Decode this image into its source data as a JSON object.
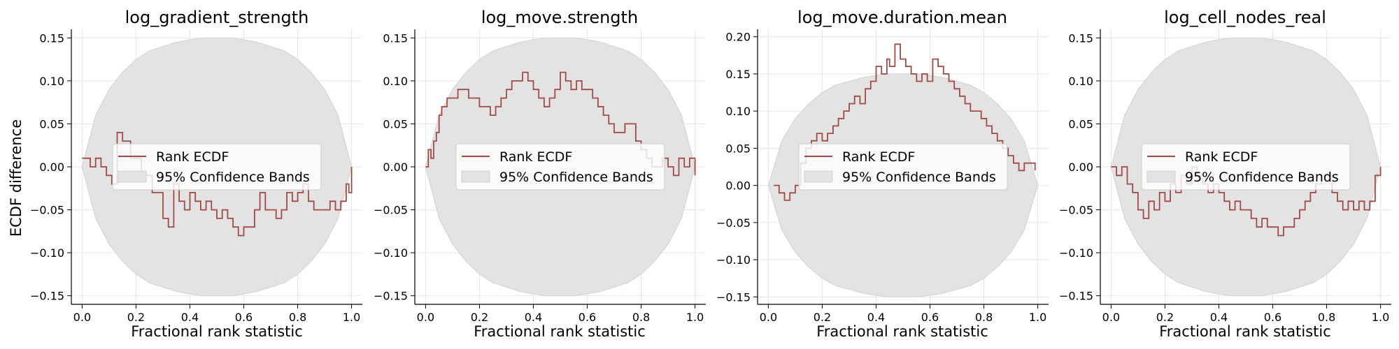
{
  "figure": {
    "ylabel": "ECDF difference"
  },
  "legend": {
    "line_label": "Rank ECDF",
    "band_label": "95% Confidence Bands"
  },
  "colors": {
    "ecdf_line": "#a24a4a",
    "band_fill": "#e3e3e3",
    "band_edge": "#d2d2d2",
    "grid": "#e6e6e6",
    "axis": "#000000"
  },
  "chart_data": [
    {
      "type": "line",
      "title": "log_gradient_strength",
      "xlabel": "Fractional rank statistic",
      "ylabel": "ECDF difference",
      "xlim": [
        -0.04,
        1.04
      ],
      "ylim": [
        -0.16,
        0.16
      ],
      "xticks": [
        0.0,
        0.2,
        0.4,
        0.6,
        0.8,
        1.0
      ],
      "yticks": [
        -0.15,
        -0.1,
        -0.05,
        0.0,
        0.05,
        0.1,
        0.15
      ],
      "legend_position": "center",
      "grid": true,
      "series": [
        {
          "name": "Rank ECDF",
          "x": [
            0.0,
            0.03,
            0.05,
            0.07,
            0.09,
            0.11,
            0.13,
            0.15,
            0.18,
            0.22,
            0.26,
            0.3,
            0.32,
            0.34,
            0.36,
            0.38,
            0.4,
            0.42,
            0.44,
            0.46,
            0.48,
            0.5,
            0.52,
            0.54,
            0.56,
            0.58,
            0.6,
            0.62,
            0.64,
            0.66,
            0.68,
            0.7,
            0.72,
            0.74,
            0.76,
            0.78,
            0.8,
            0.82,
            0.84,
            0.86,
            0.88,
            0.9,
            0.92,
            0.94,
            0.96,
            0.98,
            0.99,
            1.0
          ],
          "y": [
            0.01,
            0.0,
            0.01,
            0.0,
            -0.01,
            -0.02,
            0.04,
            0.03,
            0.01,
            -0.01,
            -0.03,
            -0.06,
            -0.07,
            -0.02,
            -0.04,
            -0.05,
            -0.03,
            -0.04,
            -0.05,
            -0.04,
            -0.05,
            -0.06,
            -0.05,
            -0.06,
            -0.07,
            -0.08,
            -0.07,
            -0.07,
            -0.05,
            -0.03,
            -0.05,
            -0.05,
            -0.06,
            -0.05,
            -0.03,
            -0.04,
            -0.03,
            -0.02,
            -0.04,
            -0.05,
            -0.05,
            -0.05,
            -0.04,
            -0.05,
            -0.04,
            -0.02,
            -0.03,
            0.0
          ]
        }
      ],
      "band": {
        "name": "95% Confidence Bands",
        "x": [
          0.0,
          0.05,
          0.1,
          0.15,
          0.2,
          0.25,
          0.3,
          0.35,
          0.4,
          0.45,
          0.5,
          0.55,
          0.6,
          0.65,
          0.7,
          0.75,
          0.8,
          0.85,
          0.9,
          0.95,
          1.0
        ],
        "upper": [
          0.0,
          0.06,
          0.09,
          0.11,
          0.125,
          0.135,
          0.14,
          0.145,
          0.148,
          0.15,
          0.15,
          0.15,
          0.148,
          0.145,
          0.14,
          0.135,
          0.125,
          0.11,
          0.09,
          0.06,
          0.0
        ],
        "lower": [
          0.0,
          -0.06,
          -0.09,
          -0.11,
          -0.125,
          -0.135,
          -0.14,
          -0.145,
          -0.148,
          -0.15,
          -0.15,
          -0.15,
          -0.148,
          -0.145,
          -0.14,
          -0.135,
          -0.125,
          -0.11,
          -0.09,
          -0.06,
          0.0
        ]
      }
    },
    {
      "type": "line",
      "title": "log_move.strength",
      "xlabel": "Fractional rank statistic",
      "ylabel": "",
      "xlim": [
        -0.04,
        1.04
      ],
      "ylim": [
        -0.16,
        0.16
      ],
      "xticks": [
        0.0,
        0.2,
        0.4,
        0.6,
        0.8,
        1.0
      ],
      "yticks": [
        -0.15,
        -0.1,
        -0.05,
        0.0,
        0.05,
        0.1,
        0.15
      ],
      "legend_position": "center",
      "grid": true,
      "series": [
        {
          "name": "Rank ECDF",
          "x": [
            0.0,
            0.01,
            0.02,
            0.03,
            0.04,
            0.05,
            0.06,
            0.07,
            0.08,
            0.1,
            0.12,
            0.14,
            0.16,
            0.18,
            0.2,
            0.22,
            0.24,
            0.26,
            0.28,
            0.3,
            0.32,
            0.34,
            0.36,
            0.38,
            0.4,
            0.42,
            0.44,
            0.46,
            0.48,
            0.5,
            0.52,
            0.54,
            0.56,
            0.58,
            0.6,
            0.62,
            0.64,
            0.66,
            0.68,
            0.7,
            0.72,
            0.74,
            0.76,
            0.78,
            0.8,
            0.82,
            0.84,
            0.86,
            0.88,
            0.9,
            0.92,
            0.94,
            0.96,
            0.98,
            1.0
          ],
          "y": [
            0.0,
            0.02,
            0.01,
            0.03,
            0.04,
            0.06,
            0.07,
            0.07,
            0.08,
            0.08,
            0.09,
            0.09,
            0.08,
            0.08,
            0.07,
            0.07,
            0.06,
            0.07,
            0.08,
            0.09,
            0.1,
            0.1,
            0.11,
            0.1,
            0.09,
            0.08,
            0.07,
            0.08,
            0.09,
            0.11,
            0.1,
            0.09,
            0.1,
            0.09,
            0.09,
            0.08,
            0.07,
            0.06,
            0.05,
            0.04,
            0.04,
            0.05,
            0.05,
            0.03,
            0.02,
            0.01,
            0.0,
            0.0,
            0.01,
            0.0,
            -0.01,
            0.01,
            0.0,
            0.01,
            -0.01
          ]
        }
      ],
      "band": {
        "name": "95% Confidence Bands",
        "x": [
          0.0,
          0.05,
          0.1,
          0.15,
          0.2,
          0.25,
          0.3,
          0.35,
          0.4,
          0.45,
          0.5,
          0.55,
          0.6,
          0.65,
          0.7,
          0.75,
          0.8,
          0.85,
          0.9,
          0.95,
          1.0
        ],
        "upper": [
          0.0,
          0.06,
          0.09,
          0.11,
          0.125,
          0.135,
          0.14,
          0.145,
          0.148,
          0.15,
          0.15,
          0.15,
          0.148,
          0.145,
          0.14,
          0.135,
          0.125,
          0.11,
          0.09,
          0.06,
          0.0
        ],
        "lower": [
          0.0,
          -0.06,
          -0.09,
          -0.11,
          -0.125,
          -0.135,
          -0.14,
          -0.145,
          -0.148,
          -0.15,
          -0.15,
          -0.15,
          -0.148,
          -0.145,
          -0.14,
          -0.135,
          -0.125,
          -0.11,
          -0.09,
          -0.06,
          0.0
        ]
      }
    },
    {
      "type": "line",
      "title": "log_move.duration.mean",
      "xlabel": "Fractional rank statistic",
      "ylabel": "",
      "xlim": [
        -0.04,
        1.04
      ],
      "ylim": [
        -0.16,
        0.21
      ],
      "xticks": [
        0.0,
        0.2,
        0.4,
        0.6,
        0.8,
        1.0
      ],
      "yticks": [
        -0.15,
        -0.1,
        -0.05,
        0.0,
        0.05,
        0.1,
        0.15,
        0.2
      ],
      "legend_position": "center",
      "grid": true,
      "series": [
        {
          "name": "Rank ECDF",
          "x": [
            0.02,
            0.04,
            0.06,
            0.08,
            0.1,
            0.12,
            0.14,
            0.16,
            0.18,
            0.2,
            0.22,
            0.24,
            0.26,
            0.28,
            0.3,
            0.32,
            0.34,
            0.36,
            0.38,
            0.4,
            0.42,
            0.44,
            0.45,
            0.47,
            0.49,
            0.51,
            0.53,
            0.55,
            0.57,
            0.59,
            0.61,
            0.63,
            0.65,
            0.67,
            0.69,
            0.71,
            0.73,
            0.75,
            0.77,
            0.79,
            0.81,
            0.83,
            0.85,
            0.87,
            0.89,
            0.91,
            0.93,
            0.95,
            0.97,
            0.99
          ],
          "y": [
            0.0,
            -0.01,
            -0.02,
            -0.01,
            0.0,
            0.03,
            0.05,
            0.06,
            0.07,
            0.06,
            0.07,
            0.08,
            0.09,
            0.1,
            0.11,
            0.12,
            0.11,
            0.13,
            0.14,
            0.16,
            0.15,
            0.17,
            0.16,
            0.19,
            0.17,
            0.16,
            0.15,
            0.14,
            0.15,
            0.14,
            0.17,
            0.16,
            0.15,
            0.14,
            0.13,
            0.12,
            0.11,
            0.1,
            0.1,
            0.09,
            0.08,
            0.07,
            0.06,
            0.05,
            0.04,
            0.03,
            0.02,
            0.03,
            0.03,
            0.02
          ]
        }
      ],
      "band": {
        "name": "95% Confidence Bands",
        "x": [
          0.0,
          0.05,
          0.1,
          0.15,
          0.2,
          0.25,
          0.3,
          0.35,
          0.4,
          0.45,
          0.5,
          0.55,
          0.6,
          0.65,
          0.7,
          0.75,
          0.8,
          0.85,
          0.9,
          0.95,
          1.0
        ],
        "upper": [
          0.0,
          0.06,
          0.09,
          0.11,
          0.125,
          0.135,
          0.14,
          0.145,
          0.148,
          0.15,
          0.15,
          0.15,
          0.148,
          0.145,
          0.14,
          0.135,
          0.125,
          0.11,
          0.09,
          0.06,
          0.0
        ],
        "lower": [
          0.0,
          -0.06,
          -0.09,
          -0.11,
          -0.125,
          -0.135,
          -0.14,
          -0.145,
          -0.148,
          -0.15,
          -0.15,
          -0.15,
          -0.148,
          -0.145,
          -0.14,
          -0.135,
          -0.125,
          -0.11,
          -0.09,
          -0.06,
          0.0
        ]
      }
    },
    {
      "type": "line",
      "title": "log_cell_nodes_real",
      "xlabel": "Fractional rank statistic",
      "ylabel": "",
      "xlim": [
        -0.04,
        1.04
      ],
      "ylim": [
        -0.16,
        0.16
      ],
      "xticks": [
        0.0,
        0.2,
        0.4,
        0.6,
        0.8,
        1.0
      ],
      "yticks": [
        -0.15,
        -0.1,
        -0.05,
        0.0,
        0.05,
        0.1,
        0.15
      ],
      "legend_position": "center",
      "grid": true,
      "series": [
        {
          "name": "Rank ECDF",
          "x": [
            0.0,
            0.02,
            0.04,
            0.06,
            0.08,
            0.1,
            0.12,
            0.14,
            0.16,
            0.18,
            0.2,
            0.22,
            0.24,
            0.26,
            0.28,
            0.3,
            0.32,
            0.34,
            0.36,
            0.38,
            0.4,
            0.42,
            0.44,
            0.46,
            0.48,
            0.5,
            0.52,
            0.54,
            0.56,
            0.58,
            0.6,
            0.62,
            0.64,
            0.66,
            0.68,
            0.7,
            0.72,
            0.74,
            0.76,
            0.78,
            0.8,
            0.82,
            0.84,
            0.86,
            0.88,
            0.9,
            0.92,
            0.94,
            0.96,
            0.98,
            1.0
          ],
          "y": [
            0.0,
            -0.01,
            0.0,
            -0.02,
            -0.03,
            -0.05,
            -0.06,
            -0.04,
            -0.05,
            -0.03,
            -0.04,
            -0.02,
            -0.03,
            -0.01,
            -0.02,
            0.0,
            -0.01,
            -0.02,
            -0.03,
            -0.02,
            -0.03,
            -0.04,
            -0.05,
            -0.04,
            -0.05,
            -0.05,
            -0.06,
            -0.07,
            -0.06,
            -0.07,
            -0.07,
            -0.08,
            -0.07,
            -0.07,
            -0.06,
            -0.05,
            -0.04,
            -0.03,
            -0.02,
            -0.01,
            -0.01,
            -0.03,
            -0.04,
            -0.05,
            -0.04,
            -0.05,
            -0.04,
            -0.05,
            -0.04,
            -0.01,
            0.0
          ]
        }
      ],
      "band": {
        "name": "95% Confidence Bands",
        "x": [
          0.0,
          0.05,
          0.1,
          0.15,
          0.2,
          0.25,
          0.3,
          0.35,
          0.4,
          0.45,
          0.5,
          0.55,
          0.6,
          0.65,
          0.7,
          0.75,
          0.8,
          0.85,
          0.9,
          0.95,
          1.0
        ],
        "upper": [
          0.0,
          0.06,
          0.09,
          0.11,
          0.125,
          0.135,
          0.14,
          0.145,
          0.148,
          0.15,
          0.15,
          0.15,
          0.148,
          0.145,
          0.14,
          0.135,
          0.125,
          0.11,
          0.09,
          0.06,
          0.0
        ],
        "lower": [
          0.0,
          -0.06,
          -0.09,
          -0.11,
          -0.125,
          -0.135,
          -0.14,
          -0.145,
          -0.148,
          -0.15,
          -0.15,
          -0.15,
          -0.148,
          -0.145,
          -0.14,
          -0.135,
          -0.125,
          -0.11,
          -0.09,
          -0.06,
          0.0
        ]
      }
    }
  ]
}
